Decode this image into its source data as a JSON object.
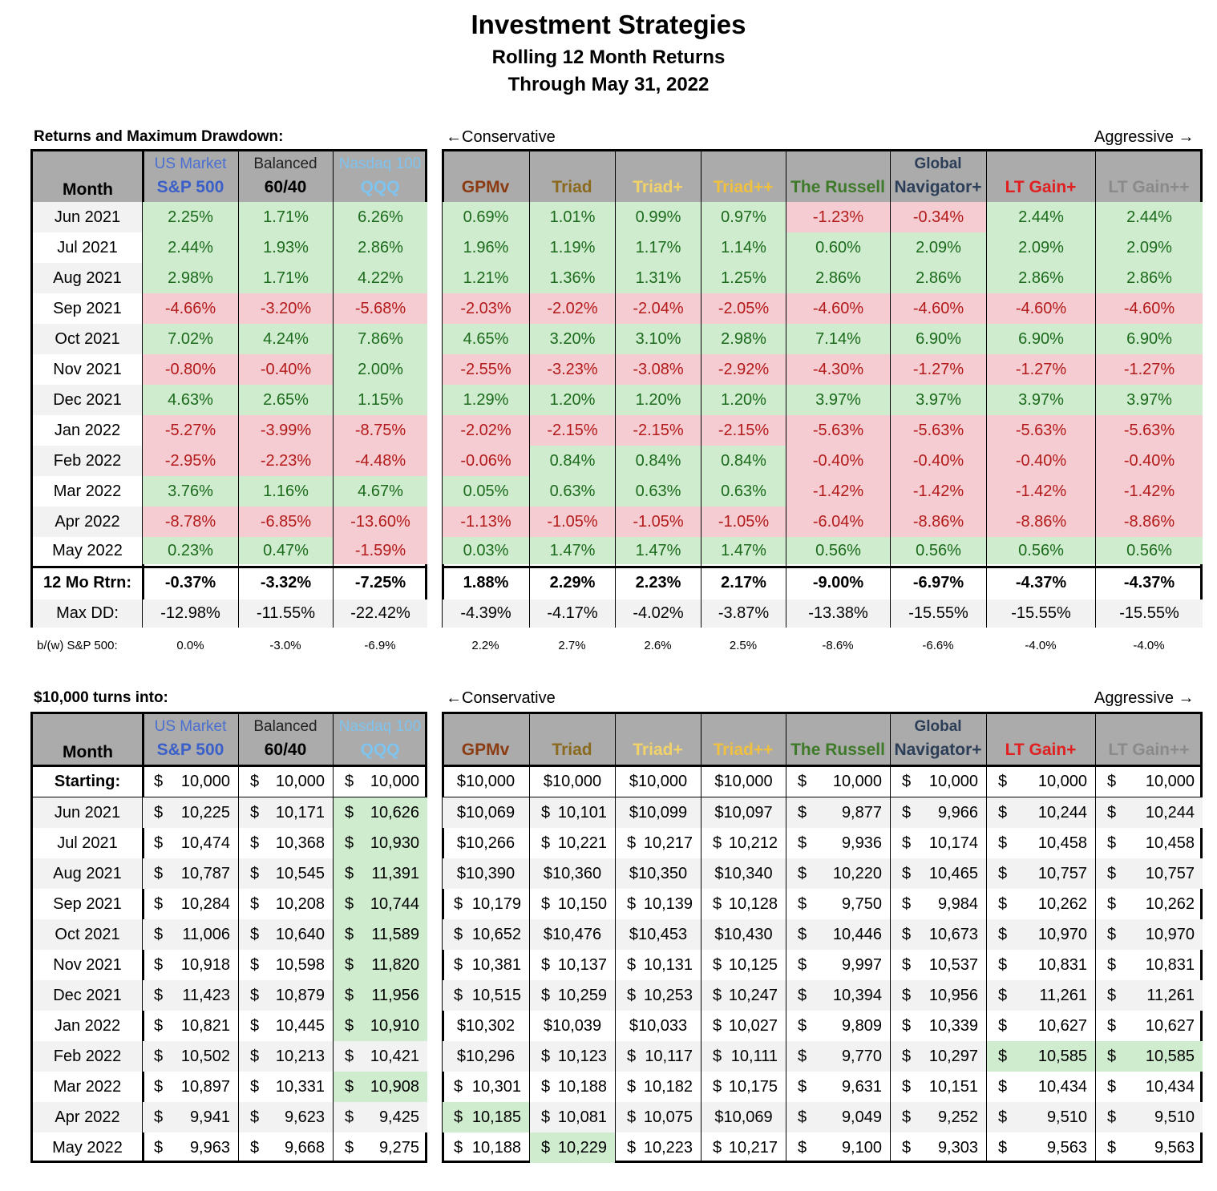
{
  "title": "Investment Strategies",
  "subtitle": "Rolling 12 Month Returns",
  "date_line": "Through May 31, 2022",
  "conservative_label": "←Conservative",
  "aggressive_label": "Aggressive →",
  "returns_section_label": "Returns and Maximum Drawdown:",
  "dollars_section_label": "$10,000 turns into:",
  "month_header": "Month",
  "columns": [
    {
      "sub": "US Market",
      "main": "S&P 500",
      "sub_color": "#4a6fd0",
      "main_color": "#3a5fc8"
    },
    {
      "sub": "Balanced",
      "main": "60/40",
      "sub_color": "#222222",
      "main_color": "#000000"
    },
    {
      "sub": "Nasdaq 100",
      "main": "QQQ",
      "sub_color": "#7fc3ef",
      "main_color": "#7fc3ef"
    },
    {
      "sub": "",
      "main": "GPMv",
      "sub_color": "#000000",
      "main_color": "#8b3b12"
    },
    {
      "sub": "",
      "main": "Triad",
      "sub_color": "#000000",
      "main_color": "#8a6a1e"
    },
    {
      "sub": "",
      "main": "Triad+",
      "sub_color": "#000000",
      "main_color": "#f2d36a"
    },
    {
      "sub": "",
      "main": "Triad++",
      "sub_color": "#000000",
      "main_color": "#f0c040"
    },
    {
      "sub": "",
      "main": "The Russell",
      "sub_color": "#000000",
      "main_color": "#3e7a2a"
    },
    {
      "sub": "Global",
      "main": "Navigator+",
      "sub_color": "#2c3e57",
      "main_color": "#2c3e57"
    },
    {
      "sub": "",
      "main": "LT Gain+",
      "sub_color": "#000000",
      "main_color": "#e02020"
    },
    {
      "sub": "",
      "main": "LT Gain++",
      "sub_color": "#000000",
      "main_color": "#8a8a8a"
    }
  ],
  "months": [
    "Jun 2021",
    "Jul 2021",
    "Aug 2021",
    "Sep 2021",
    "Oct 2021",
    "Nov 2021",
    "Dec 2021",
    "Jan 2022",
    "Feb 2022",
    "Mar 2022",
    "Apr 2022",
    "May 2022"
  ],
  "returns": [
    [
      "2.25%",
      "1.71%",
      "6.26%",
      "0.69%",
      "1.01%",
      "0.99%",
      "0.97%",
      "-1.23%",
      "-0.34%",
      "2.44%",
      "2.44%"
    ],
    [
      "2.44%",
      "1.93%",
      "2.86%",
      "1.96%",
      "1.19%",
      "1.17%",
      "1.14%",
      "0.60%",
      "2.09%",
      "2.09%",
      "2.09%"
    ],
    [
      "2.98%",
      "1.71%",
      "4.22%",
      "1.21%",
      "1.36%",
      "1.31%",
      "1.25%",
      "2.86%",
      "2.86%",
      "2.86%",
      "2.86%"
    ],
    [
      "-4.66%",
      "-3.20%",
      "-5.68%",
      "-2.03%",
      "-2.02%",
      "-2.04%",
      "-2.05%",
      "-4.60%",
      "-4.60%",
      "-4.60%",
      "-4.60%"
    ],
    [
      "7.02%",
      "4.24%",
      "7.86%",
      "4.65%",
      "3.20%",
      "3.10%",
      "2.98%",
      "7.14%",
      "6.90%",
      "6.90%",
      "6.90%"
    ],
    [
      "-0.80%",
      "-0.40%",
      "2.00%",
      "-2.55%",
      "-3.23%",
      "-3.08%",
      "-2.92%",
      "-4.30%",
      "-1.27%",
      "-1.27%",
      "-1.27%"
    ],
    [
      "4.63%",
      "2.65%",
      "1.15%",
      "1.29%",
      "1.20%",
      "1.20%",
      "1.20%",
      "3.97%",
      "3.97%",
      "3.97%",
      "3.97%"
    ],
    [
      "-5.27%",
      "-3.99%",
      "-8.75%",
      "-2.02%",
      "-2.15%",
      "-2.15%",
      "-2.15%",
      "-5.63%",
      "-5.63%",
      "-5.63%",
      "-5.63%"
    ],
    [
      "-2.95%",
      "-2.23%",
      "-4.48%",
      "-0.06%",
      "0.84%",
      "0.84%",
      "0.84%",
      "-0.40%",
      "-0.40%",
      "-0.40%",
      "-0.40%"
    ],
    [
      "3.76%",
      "1.16%",
      "4.67%",
      "0.05%",
      "0.63%",
      "0.63%",
      "0.63%",
      "-1.42%",
      "-1.42%",
      "-1.42%",
      "-1.42%"
    ],
    [
      "-8.78%",
      "-6.85%",
      "-13.60%",
      "-1.13%",
      "-1.05%",
      "-1.05%",
      "-1.05%",
      "-6.04%",
      "-8.86%",
      "-8.86%",
      "-8.86%"
    ],
    [
      "0.23%",
      "0.47%",
      "-1.59%",
      "0.03%",
      "1.47%",
      "1.47%",
      "1.47%",
      "0.56%",
      "0.56%",
      "0.56%",
      "0.56%"
    ]
  ],
  "twelve_mo_label": "12 Mo Rtrn:",
  "twelve_mo": [
    "-0.37%",
    "-3.32%",
    "-7.25%",
    "1.88%",
    "2.29%",
    "2.23%",
    "2.17%",
    "-9.00%",
    "-6.97%",
    "-4.37%",
    "-4.37%"
  ],
  "maxdd_label": "Max DD:",
  "maxdd": [
    "-12.98%",
    "-11.55%",
    "-22.42%",
    "-4.39%",
    "-4.17%",
    "-4.02%",
    "-3.87%",
    "-13.38%",
    "-15.55%",
    "-15.55%",
    "-15.55%"
  ],
  "bw_label": "b/(w) S&P 500:",
  "bw": [
    "0.0%",
    "-3.0%",
    "-6.9%",
    "2.2%",
    "2.7%",
    "2.6%",
    "2.5%",
    "-8.6%",
    "-6.6%",
    "-4.0%",
    "-4.0%"
  ],
  "starting_label": "Starting:",
  "starting": [
    [
      "$",
      "10,000"
    ],
    [
      "$",
      "10,000"
    ],
    [
      "$",
      "10,000"
    ],
    [
      "",
      "$10,000"
    ],
    [
      "",
      "$10,000"
    ],
    [
      "",
      "$10,000"
    ],
    [
      "",
      "$10,000"
    ],
    [
      "$",
      "10,000"
    ],
    [
      "$",
      "10,000"
    ],
    [
      "$",
      "10,000"
    ],
    [
      "$",
      "10,000"
    ]
  ],
  "dollars": [
    [
      [
        "$",
        "10,225"
      ],
      [
        "$",
        "10,171"
      ],
      [
        "$",
        "10,626"
      ],
      [
        "",
        "$10,069"
      ],
      [
        "$",
        "10,101"
      ],
      [
        "",
        "$10,099"
      ],
      [
        "",
        "$10,097"
      ],
      [
        "$",
        "9,877"
      ],
      [
        "$",
        "9,966"
      ],
      [
        "$",
        "10,244"
      ],
      [
        "$",
        "10,244"
      ]
    ],
    [
      [
        "$",
        "10,474"
      ],
      [
        "$",
        "10,368"
      ],
      [
        "$",
        "10,930"
      ],
      [
        "",
        "$10,266"
      ],
      [
        "$",
        "10,221"
      ],
      [
        "$",
        "10,217"
      ],
      [
        "$",
        "10,212"
      ],
      [
        "$",
        "9,936"
      ],
      [
        "$",
        "10,174"
      ],
      [
        "$",
        "10,458"
      ],
      [
        "$",
        "10,458"
      ]
    ],
    [
      [
        "$",
        "10,787"
      ],
      [
        "$",
        "10,545"
      ],
      [
        "$",
        "11,391"
      ],
      [
        "",
        "$10,390"
      ],
      [
        "",
        "$10,360"
      ],
      [
        "",
        "$10,350"
      ],
      [
        "",
        "$10,340"
      ],
      [
        "$",
        "10,220"
      ],
      [
        "$",
        "10,465"
      ],
      [
        "$",
        "10,757"
      ],
      [
        "$",
        "10,757"
      ]
    ],
    [
      [
        "$",
        "10,284"
      ],
      [
        "$",
        "10,208"
      ],
      [
        "$",
        "10,744"
      ],
      [
        "$",
        "10,179"
      ],
      [
        "$",
        "10,150"
      ],
      [
        "$",
        "10,139"
      ],
      [
        "$",
        "10,128"
      ],
      [
        "$",
        "9,750"
      ],
      [
        "$",
        "9,984"
      ],
      [
        "$",
        "10,262"
      ],
      [
        "$",
        "10,262"
      ]
    ],
    [
      [
        "$",
        "11,006"
      ],
      [
        "$",
        "10,640"
      ],
      [
        "$",
        "11,589"
      ],
      [
        "$",
        "10,652"
      ],
      [
        "",
        "$10,476"
      ],
      [
        "",
        "$10,453"
      ],
      [
        "",
        "$10,430"
      ],
      [
        "$",
        "10,446"
      ],
      [
        "$",
        "10,673"
      ],
      [
        "$",
        "10,970"
      ],
      [
        "$",
        "10,970"
      ]
    ],
    [
      [
        "$",
        "10,918"
      ],
      [
        "$",
        "10,598"
      ],
      [
        "$",
        "11,820"
      ],
      [
        "$",
        "10,381"
      ],
      [
        "$",
        "10,137"
      ],
      [
        "$",
        "10,131"
      ],
      [
        "$",
        "10,125"
      ],
      [
        "$",
        "9,997"
      ],
      [
        "$",
        "10,537"
      ],
      [
        "$",
        "10,831"
      ],
      [
        "$",
        "10,831"
      ]
    ],
    [
      [
        "$",
        "11,423"
      ],
      [
        "$",
        "10,879"
      ],
      [
        "$",
        "11,956"
      ],
      [
        "$",
        "10,515"
      ],
      [
        "$",
        "10,259"
      ],
      [
        "$",
        "10,253"
      ],
      [
        "$",
        "10,247"
      ],
      [
        "$",
        "10,394"
      ],
      [
        "$",
        "10,956"
      ],
      [
        "$",
        "11,261"
      ],
      [
        "$",
        "11,261"
      ]
    ],
    [
      [
        "$",
        "10,821"
      ],
      [
        "$",
        "10,445"
      ],
      [
        "$",
        "10,910"
      ],
      [
        "",
        "$10,302"
      ],
      [
        "",
        "$10,039"
      ],
      [
        "",
        "$10,033"
      ],
      [
        "$",
        "10,027"
      ],
      [
        "$",
        "9,809"
      ],
      [
        "$",
        "10,339"
      ],
      [
        "$",
        "10,627"
      ],
      [
        "$",
        "10,627"
      ]
    ],
    [
      [
        "$",
        "10,502"
      ],
      [
        "$",
        "10,213"
      ],
      [
        "$",
        "10,421"
      ],
      [
        "",
        "$10,296"
      ],
      [
        "$",
        "10,123"
      ],
      [
        "$",
        "10,117"
      ],
      [
        "$",
        "10,111"
      ],
      [
        "$",
        "9,770"
      ],
      [
        "$",
        "10,297"
      ],
      [
        "$",
        "10,585"
      ],
      [
        "$",
        "10,585"
      ]
    ],
    [
      [
        "$",
        "10,897"
      ],
      [
        "$",
        "10,331"
      ],
      [
        "$",
        "10,908"
      ],
      [
        "$",
        "10,301"
      ],
      [
        "$",
        "10,188"
      ],
      [
        "$",
        "10,182"
      ],
      [
        "$",
        "10,175"
      ],
      [
        "$",
        "9,631"
      ],
      [
        "$",
        "10,151"
      ],
      [
        "$",
        "10,434"
      ],
      [
        "$",
        "10,434"
      ]
    ],
    [
      [
        "$",
        "9,941"
      ],
      [
        "$",
        "9,623"
      ],
      [
        "$",
        "9,425"
      ],
      [
        "$",
        "10,185"
      ],
      [
        "$",
        "10,081"
      ],
      [
        "$",
        "10,075"
      ],
      [
        "",
        "$10,069"
      ],
      [
        "$",
        "9,049"
      ],
      [
        "$",
        "9,252"
      ],
      [
        "$",
        "9,510"
      ],
      [
        "$",
        "9,510"
      ]
    ],
    [
      [
        "$",
        "9,963"
      ],
      [
        "$",
        "9,668"
      ],
      [
        "$",
        "9,275"
      ],
      [
        "$",
        "10,188"
      ],
      [
        "$",
        "10,229"
      ],
      [
        "$",
        "10,223"
      ],
      [
        "$",
        "10,217"
      ],
      [
        "$",
        "9,100"
      ],
      [
        "$",
        "9,303"
      ],
      [
        "$",
        "9,563"
      ],
      [
        "$",
        "9,563"
      ]
    ]
  ],
  "dollar_highlights": [
    [
      0,
      2
    ],
    [
      1,
      2
    ],
    [
      2,
      2
    ],
    [
      3,
      2
    ],
    [
      4,
      2
    ],
    [
      5,
      2
    ],
    [
      6,
      2
    ],
    [
      7,
      2
    ],
    [
      9,
      2
    ],
    [
      10,
      3
    ],
    [
      11,
      4
    ],
    [
      8,
      9
    ],
    [
      8,
      10
    ]
  ]
}
